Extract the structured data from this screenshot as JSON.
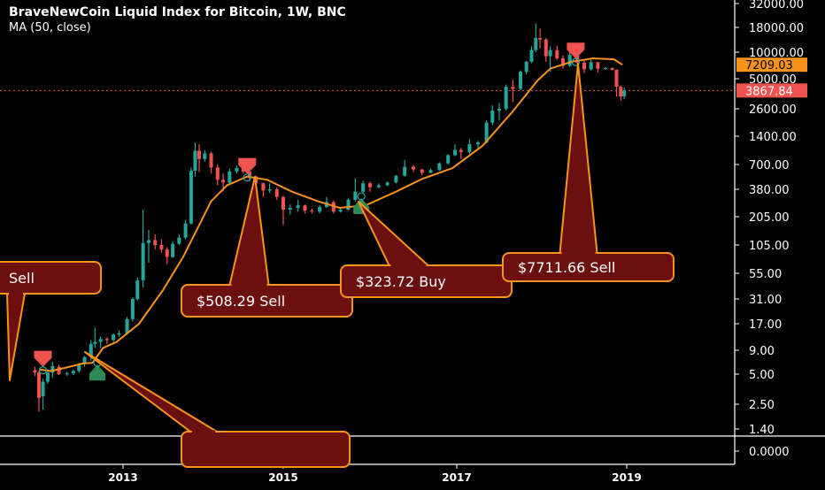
{
  "header": {
    "title": "BraveNewCoin Liquid Index for Bitcoin, 1W, BNC",
    "indicator": "MA (50, close)"
  },
  "chart_data": {
    "type": "candlestick",
    "title": "BraveNewCoin Liquid Index for Bitcoin, 1W, BNC",
    "y_scale": "log",
    "y_ticks": [
      "32000.00",
      "18000.00",
      "10000.00",
      "5000.00",
      "2600.00",
      "1400.00",
      "700.00",
      "380.00",
      "205.00",
      "105.00",
      "55.00",
      "31.00",
      "17.00",
      "9.00",
      "5.00",
      "2.50",
      "1.40",
      "0.0000"
    ],
    "x_ticks": [
      "2013",
      "2015",
      "2017",
      "2019"
    ],
    "price_badges": [
      {
        "label": "7209.03",
        "value": 7209.03,
        "color": "#f7931a",
        "meaning": "MA value"
      },
      {
        "label": "3867.84",
        "value": 3867.84,
        "color": "#ef5350",
        "meaning": "last price"
      }
    ],
    "ma_series": {
      "name": "MA (50, close)",
      "color": "#f7931a",
      "points": [
        [
          "2011.95",
          5.6
        ],
        [
          "2012.10",
          5.4
        ],
        [
          "2012.30",
          5.9
        ],
        [
          "2012.50",
          6.5
        ],
        [
          "2012.62",
          6.6
        ],
        [
          "2012.75",
          9.5
        ],
        [
          "2012.92",
          11
        ],
        [
          "2013.20",
          17
        ],
        [
          "2013.50",
          38
        ],
        [
          "2013.75",
          80
        ],
        [
          "2013.85",
          115
        ],
        [
          "2014.10",
          290
        ],
        [
          "2014.30",
          420
        ],
        [
          "2014.55",
          520
        ],
        [
          "2014.80",
          480
        ],
        [
          "2015.10",
          360
        ],
        [
          "2015.40",
          290
        ],
        [
          "2015.65",
          250
        ],
        [
          "2015.95",
          265
        ],
        [
          "2016.30",
          360
        ],
        [
          "2016.60",
          490
        ],
        [
          "2016.95",
          640
        ],
        [
          "2017.30",
          1100
        ],
        [
          "2017.65",
          2400
        ],
        [
          "2017.95",
          4800
        ],
        [
          "2018.10",
          6500
        ],
        [
          "2018.35",
          7800
        ],
        [
          "2018.60",
          8500
        ],
        [
          "2018.85",
          8300
        ],
        [
          "2018.95",
          7209
        ]
      ]
    },
    "candles": [
      [
        "2011.90",
        5.5,
        6.0,
        4.8,
        5.2
      ],
      [
        "2011.95",
        5.2,
        5.4,
        2.1,
        2.9
      ],
      [
        "2012.00",
        3.0,
        4.5,
        2.2,
        4.2
      ],
      [
        "2012.06",
        4.2,
        5.6,
        4.0,
        5.2
      ],
      [
        "2012.12",
        5.2,
        6.8,
        4.6,
        6.1
      ],
      [
        "2012.20",
        6.0,
        6.3,
        4.9,
        5.0
      ],
      [
        "2012.30",
        5.0,
        5.3,
        4.8,
        5.1
      ],
      [
        "2012.38",
        5.1,
        5.6,
        4.9,
        5.4
      ],
      [
        "2012.45",
        5.4,
        6.6,
        5.2,
        6.4
      ],
      [
        "2012.52",
        6.4,
        7.8,
        6.0,
        7.6
      ],
      [
        "2012.60",
        7.6,
        11.5,
        7.0,
        10.5
      ],
      [
        "2012.65",
        10.5,
        15.5,
        9.5,
        11.0
      ],
      [
        "2012.72",
        11.0,
        12.5,
        9.5,
        11.8
      ],
      [
        "2012.80",
        11.8,
        12.3,
        10.5,
        11.5
      ],
      [
        "2012.88",
        11.5,
        13.5,
        11.0,
        13.1
      ],
      [
        "2012.95",
        13.1,
        14.5,
        12.5,
        13.5
      ],
      [
        "2013.05",
        13.5,
        20,
        13,
        19
      ],
      [
        "2013.12",
        19,
        32,
        18,
        31
      ],
      [
        "2013.18",
        31,
        50,
        30,
        47
      ],
      [
        "2013.25",
        47,
        240,
        40,
        110
      ],
      [
        "2013.32",
        110,
        150,
        70,
        118
      ],
      [
        "2013.40",
        118,
        135,
        95,
        105
      ],
      [
        "2013.48",
        105,
        120,
        88,
        95
      ],
      [
        "2013.55",
        95,
        100,
        68,
        80
      ],
      [
        "2013.62",
        80,
        115,
        78,
        108
      ],
      [
        "2013.70",
        108,
        135,
        105,
        125
      ],
      [
        "2013.78",
        125,
        190,
        120,
        175
      ],
      [
        "2013.85",
        175,
        650,
        170,
        600
      ],
      [
        "2013.90",
        600,
        1200,
        520,
        980
      ],
      [
        "2013.95",
        980,
        1150,
        580,
        800
      ],
      [
        "2014.02",
        800,
        1000,
        750,
        920
      ],
      [
        "2014.10",
        920,
        950,
        560,
        650
      ],
      [
        "2014.18",
        650,
        700,
        420,
        480
      ],
      [
        "2014.25",
        480,
        560,
        360,
        450
      ],
      [
        "2014.33",
        450,
        630,
        430,
        590
      ],
      [
        "2014.42",
        590,
        680,
        560,
        640
      ],
      [
        "2014.50",
        640,
        660,
        560,
        590
      ],
      [
        "2014.58",
        590,
        600,
        460,
        520
      ],
      [
        "2014.66",
        520,
        530,
        400,
        440
      ],
      [
        "2014.75",
        440,
        450,
        320,
        370
      ],
      [
        "2014.83",
        370,
        440,
        350,
        380
      ],
      [
        "2014.92",
        380,
        400,
        300,
        320
      ],
      [
        "2015.00",
        320,
        330,
        170,
        240
      ],
      [
        "2015.08",
        240,
        270,
        215,
        250
      ],
      [
        "2015.17",
        250,
        300,
        230,
        265
      ],
      [
        "2015.25",
        265,
        270,
        220,
        235
      ],
      [
        "2015.33",
        235,
        245,
        220,
        230
      ],
      [
        "2015.42",
        230,
        265,
        220,
        255
      ],
      [
        "2015.50",
        255,
        320,
        250,
        285
      ],
      [
        "2015.58",
        285,
        295,
        220,
        230
      ],
      [
        "2015.66",
        230,
        250,
        225,
        240
      ],
      [
        "2015.75",
        240,
        310,
        235,
        300
      ],
      [
        "2015.83",
        300,
        500,
        290,
        360
      ],
      [
        "2015.92",
        360,
        470,
        350,
        440
      ],
      [
        "2016.00",
        440,
        460,
        360,
        400
      ],
      [
        "2016.10",
        400,
        440,
        390,
        420
      ],
      [
        "2016.20",
        420,
        460,
        410,
        450
      ],
      [
        "2016.30",
        450,
        540,
        440,
        530
      ],
      [
        "2016.40",
        530,
        780,
        520,
        660
      ],
      [
        "2016.50",
        660,
        690,
        580,
        620
      ],
      [
        "2016.60",
        620,
        630,
        540,
        570
      ],
      [
        "2016.70",
        570,
        630,
        565,
        610
      ],
      [
        "2016.80",
        610,
        740,
        600,
        720
      ],
      [
        "2016.90",
        720,
        900,
        700,
        880
      ],
      [
        "2016.98",
        880,
        1150,
        860,
        1000
      ],
      [
        "2017.05",
        1000,
        1050,
        800,
        950
      ],
      [
        "2017.15",
        950,
        1300,
        920,
        1150
      ],
      [
        "2017.25",
        1150,
        1250,
        1000,
        1200
      ],
      [
        "2017.35",
        1200,
        2000,
        1180,
        1900
      ],
      [
        "2017.42",
        1900,
        2800,
        1800,
        2500
      ],
      [
        "2017.50",
        2500,
        2950,
        2000,
        2600
      ],
      [
        "2017.58",
        2600,
        4400,
        2500,
        4200
      ],
      [
        "2017.66",
        4200,
        4900,
        3000,
        4000
      ],
      [
        "2017.75",
        4000,
        6200,
        3900,
        6000
      ],
      [
        "2017.82",
        6000,
        8000,
        5600,
        7800
      ],
      [
        "2017.88",
        7800,
        11500,
        7500,
        10500
      ],
      [
        "2017.93",
        10500,
        19800,
        10000,
        14000
      ],
      [
        "2017.98",
        14000,
        17500,
        11000,
        13500
      ],
      [
        "2018.05",
        13500,
        14000,
        7800,
        9000
      ],
      [
        "2018.10",
        9000,
        11500,
        6000,
        10500
      ],
      [
        "2018.18",
        10500,
        11700,
        8200,
        8500
      ],
      [
        "2018.25",
        8500,
        9200,
        6500,
        7000
      ],
      [
        "2018.33",
        7000,
        9900,
        6800,
        9300
      ],
      [
        "2018.42",
        9300,
        9500,
        7300,
        7600
      ],
      [
        "2018.50",
        7600,
        8000,
        5800,
        6400
      ],
      [
        "2018.58",
        6400,
        8500,
        6200,
        7700
      ],
      [
        "2018.66",
        7700,
        7800,
        5900,
        6500
      ],
      [
        "2018.75",
        6500,
        6800,
        6300,
        6600
      ],
      [
        "2018.83",
        6600,
        6700,
        6200,
        6300
      ],
      [
        "2018.88",
        6300,
        6400,
        3400,
        4200
      ],
      [
        "2018.93",
        4200,
        4300,
        3100,
        3400
      ],
      [
        "2018.97",
        3400,
        4100,
        3200,
        3867.84
      ]
    ],
    "signals": [
      {
        "date": "2012.00",
        "type": "sell",
        "price": 5.5,
        "label": "Sell"
      },
      {
        "date": "2012.68",
        "type": "buy",
        "price": 6.6,
        "label": ""
      },
      {
        "date": "2014.55",
        "type": "sell",
        "price": 508.29,
        "label": "$508.29 Sell"
      },
      {
        "date": "2015.90",
        "type": "buy",
        "price": 323.72,
        "label": "$323.72 Buy"
      },
      {
        "date": "2018.40",
        "type": "sell",
        "price": 7711.66,
        "label": "$7711.66 Sell"
      }
    ],
    "callouts": [
      {
        "text": "Sell",
        "anchor": {
          "date": "2011.97",
          "price": 5.5
        },
        "box": "left-middle"
      },
      {
        "text": "$508.29 Sell",
        "anchor": {
          "date": "2014.55",
          "price": 508.29
        },
        "box": "lower-middle"
      },
      {
        "text": "$323.72 Buy",
        "anchor": {
          "date": "2015.90",
          "price": 323.72
        },
        "box": "lower-middle"
      },
      {
        "text": "$7711.66 Sell",
        "anchor": {
          "date": "2018.40",
          "price": 7711.66
        },
        "box": "lower-right"
      },
      {
        "text": "",
        "anchor": {
          "date": "2012.70",
          "price": 10
        },
        "box": "bottom"
      }
    ],
    "colors": {
      "up": "#26a69a",
      "down": "#ef5350",
      "ma": "#f7931a",
      "callout_fill": "#6b0f0f",
      "callout_border": "#f7931a",
      "axis_text": "#ffffff",
      "dotted_line": "#ef5350"
    }
  }
}
